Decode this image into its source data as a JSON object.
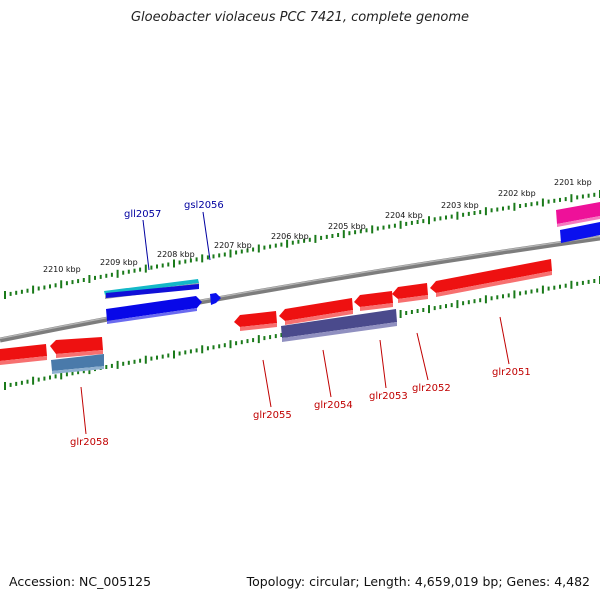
{
  "title": "Gloeobacter violaceus PCC 7421, complete genome",
  "footer": {
    "accession": "Accession: NC_005125",
    "summary": "Topology: circular; Length: 4,659,019 bp; Genes: 4,482"
  },
  "colors": {
    "backbone": "#808080",
    "tick": "#1a7a1a",
    "label_forward": "#0000a0",
    "label_reverse": "#c00000",
    "gene_red": "#ee1111",
    "gene_blue": "#0a0ae0",
    "gene_cyan": "#11bbcc",
    "gene_magenta": "#ee1199",
    "gene_purple": "#4a4a8a",
    "gene_steel": "#4a7aaa"
  },
  "kbp_labels": [
    "2201 kbp",
    "2202 kbp",
    "2203 kbp",
    "2204 kbp",
    "2205 kbp",
    "2206 kbp",
    "2207 kbp",
    "2208 kbp",
    "2209 kbp",
    "2210 kbp"
  ],
  "gene_labels_forward": [
    "gll2057",
    "gsl2056"
  ],
  "gene_labels_reverse": [
    "glr2058",
    "glr2055",
    "glr2054",
    "glr2053",
    "glr2052",
    "glr2051"
  ]
}
